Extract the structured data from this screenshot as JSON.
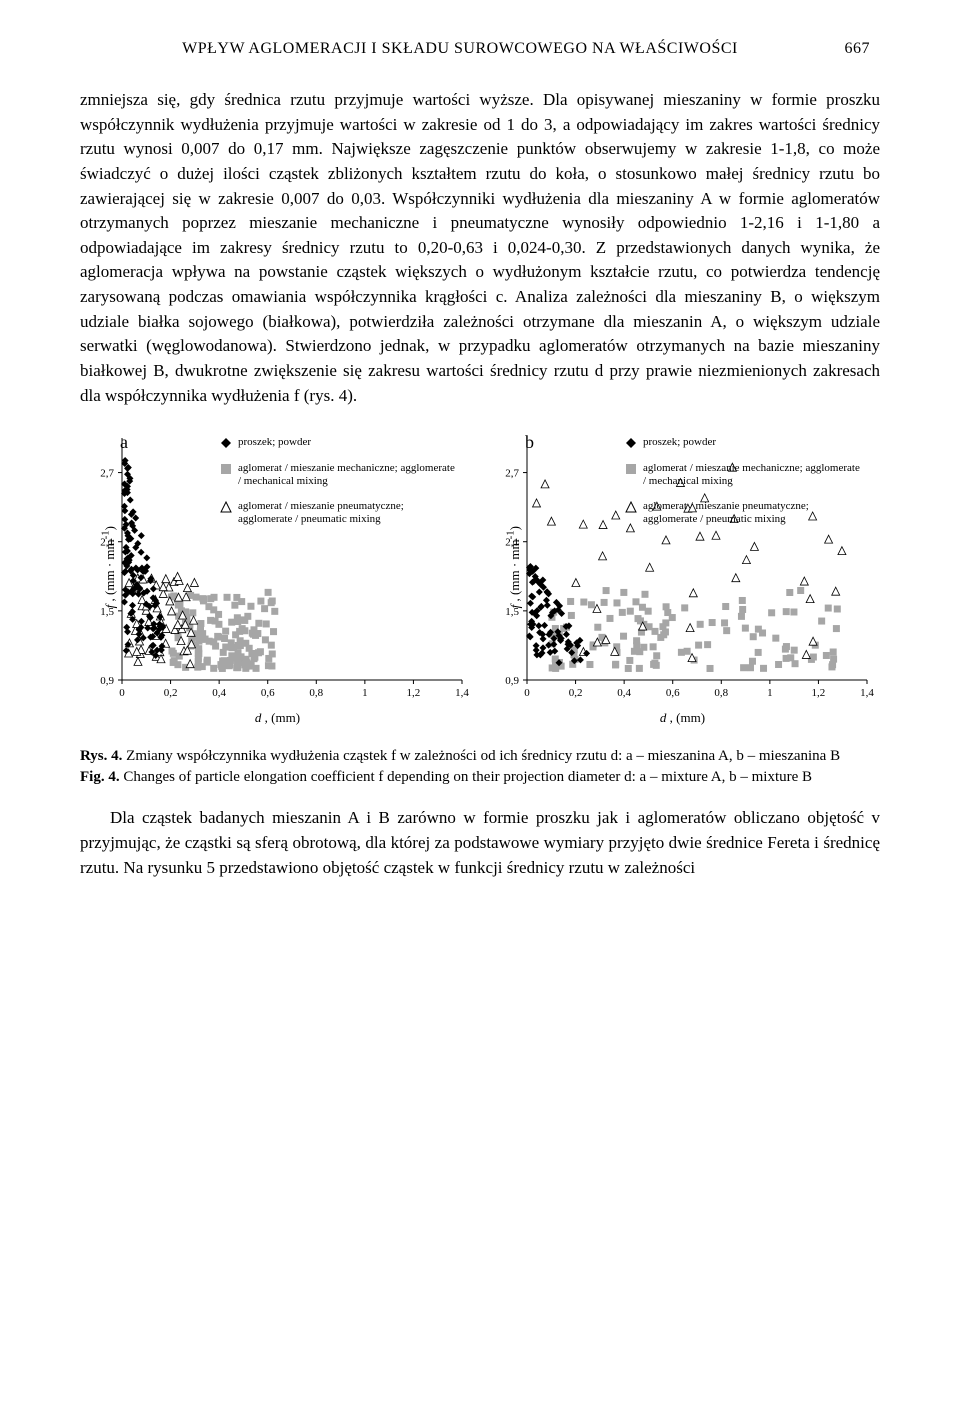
{
  "header": {
    "title": "WPŁYW AGLOMERACJI I SKŁADU SUROWCOWEGO NA WŁAŚCIWOŚCI",
    "page_number": "667"
  },
  "body_paragraph": "zmniejsza się, gdy średnica rzutu przyjmuje wartości wyższe. Dla opisywanej mieszaniny w formie proszku współczynnik wydłużenia przyjmuje wartości w zakresie od 1 do 3, a odpowiadający im zakres wartości średnicy rzutu wynosi 0,007 do 0,17 mm. Największe zagęszczenie punktów obserwujemy w zakresie 1-1,8, co może świadczyć o dużej ilości cząstek zbliżonych kształtem rzutu do koła, o stosunkowo małej średnicy rzutu bo zawierającej się w zakresie 0,007 do 0,03. Współczynniki wydłużenia dla mieszaniny A w formie aglomeratów otrzymanych poprzez mieszanie mechaniczne i pneumatyczne wynosiły odpowiednio 1-2,16 i 1-1,80 a odpowiadające im zakresy średnicy rzutu to 0,20-0,63 i 0,024-0,30. Z przedstawionych danych wynika, że aglomeracja wpływa na powstanie cząstek większych o wydłużonym kształcie rzutu, co potwierdza tendencję zarysowaną podczas omawiania współczynnika krągłości c. Analiza zależności dla mieszaniny B, o większym udziale białka sojowego (białkowa), potwierdziła zależności otrzymane dla mieszanin A, o większym udziale serwatki (węglowodanowa). Stwierdzono jednak, w przypadku aglomeratów otrzymanych na bazie mieszaniny białkowej B, dwukrotne zwiększenie się zakresu wartości średnicy rzutu d przy prawie niezmienionych zakresach dla współczynnika wydłużenia f (rys. 4).",
  "charts": {
    "a": {
      "panel_label": "a",
      "type": "scatter",
      "xlim": [
        0,
        1.4
      ],
      "ylim": [
        0.9,
        3.0
      ],
      "xticks": [
        0,
        0.2,
        0.4,
        0.6,
        0.8,
        1.0,
        1.2,
        1.4
      ],
      "yticks": [
        0.9,
        1.5,
        2.1,
        2.7
      ],
      "xlabel": "d , (mm)",
      "ylabel": "f , (mm · mm⁻¹)",
      "background_color": "#ffffff",
      "axis_color": "#000000",
      "tick_fontsize": 11,
      "label_fontsize": 13,
      "legend": [
        {
          "label": "proszek; powder",
          "marker": "diamond",
          "color": "#000000"
        },
        {
          "label": "aglomerat / mieszanie mechaniczne; agglomerate / mechanical mixing",
          "marker": "square",
          "color": "#a6a6a6"
        },
        {
          "label": "aglomerat / mieszanie pneumatyczne; agglomerate / pneumatic mixing",
          "marker": "triangle",
          "color": "#ffffff",
          "stroke": "#000000"
        }
      ],
      "series": {
        "powder": {
          "x_range": [
            0.01,
            0.17
          ],
          "y_range": [
            1.0,
            3.0
          ],
          "n_approx": 120,
          "cluster": "dense_left"
        },
        "mechanical": {
          "x_range": [
            0.2,
            0.63
          ],
          "y_range": [
            1.0,
            2.16
          ],
          "n_approx": 150,
          "cluster": "mid_band"
        },
        "pneumatic": {
          "x_range": [
            0.024,
            0.3
          ],
          "y_range": [
            1.0,
            1.8
          ],
          "n_approx": 60,
          "cluster": "low_scatter"
        }
      }
    },
    "b": {
      "panel_label": "b",
      "type": "scatter",
      "xlim": [
        0,
        1.4
      ],
      "ylim": [
        0.9,
        3.0
      ],
      "xticks": [
        0,
        0.2,
        0.4,
        0.6,
        0.8,
        1.0,
        1.2,
        1.4
      ],
      "yticks": [
        0.9,
        1.5,
        2.1,
        2.7
      ],
      "xlabel": "d , (mm)",
      "ylabel": "f , (mm · mm⁻¹)",
      "background_color": "#ffffff",
      "axis_color": "#000000",
      "tick_fontsize": 11,
      "label_fontsize": 13,
      "legend": [
        {
          "label": "proszek; powder",
          "marker": "diamond",
          "color": "#000000"
        },
        {
          "label": "aglomerat / mieszanie mechaniczne; agglomerate / mechanical mixing",
          "marker": "square",
          "color": "#a6a6a6"
        },
        {
          "label": "aglomerat / mieszanie pneumatyczne; agglomerate / pneumatic mixing",
          "marker": "triangle",
          "color": "#ffffff",
          "stroke": "#000000"
        }
      ],
      "series": {
        "powder": {
          "x_range": [
            0.01,
            0.25
          ],
          "y_range": [
            1.0,
            2.0
          ],
          "n_approx": 80,
          "cluster": "dense_left"
        },
        "mechanical": {
          "x_range": [
            0.1,
            1.3
          ],
          "y_range": [
            1.0,
            2.0
          ],
          "n_approx": 120,
          "cluster": "wide_band"
        },
        "pneumatic": {
          "x_range": [
            0.02,
            1.3
          ],
          "y_range": [
            1.0,
            2.8
          ],
          "n_approx": 40,
          "cluster": "wide_scatter"
        }
      }
    }
  },
  "caption": {
    "rys_label": "Rys. 4.",
    "rys_text": " Zmiany współczynnika wydłużenia cząstek f w zależności od ich średnicy rzutu d: a – mieszanina A, b – mieszanina B",
    "fig_label": "Fig. 4.",
    "fig_text": " Changes of particle elongation coefficient f depending on their projection diameter d: a – mixture A, b – mixture B"
  },
  "footer_paragraph": "Dla cząstek badanych mieszanin A i B zarówno w formie proszku jak i aglomeratów obliczano objętość v przyjmując, że cząstki są sferą obrotową, dla której za podstawowe wymiary przyjęto dwie średnice Fereta i średnicę rzutu. Na rysunku 5 przedstawiono objętość cząstek w funkcji średnicy rzutu w zależności"
}
